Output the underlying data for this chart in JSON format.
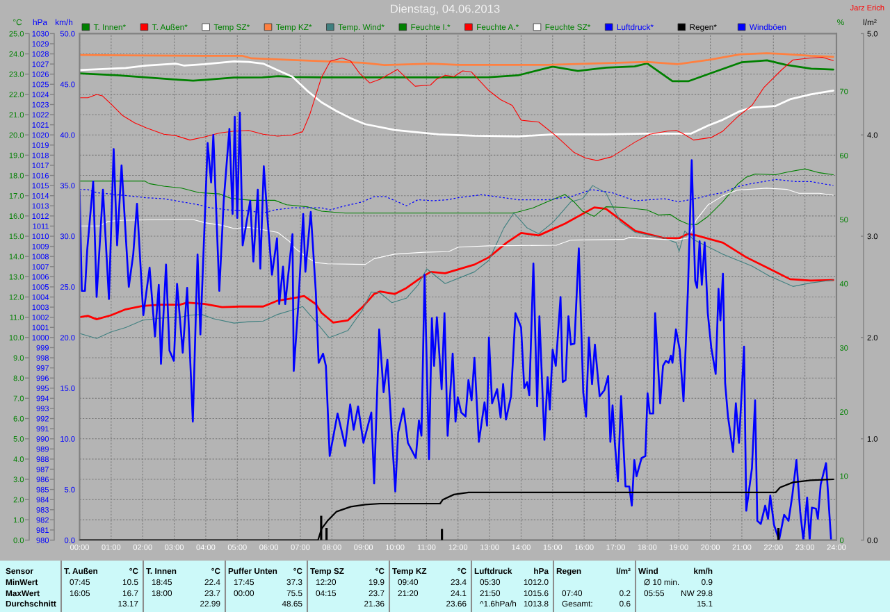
{
  "chart_data": [
    {
      "type": "line",
      "title": "Dienstag, 04.06.2013",
      "annotations": [
        "Jarz Erich"
      ],
      "xlim": [
        0,
        24
      ],
      "xticks": [
        {
          "value": 0,
          "label": "00:00"
        },
        {
          "value": 1,
          "label": "01:00"
        },
        {
          "value": 2,
          "label": "02:00"
        },
        {
          "value": 3,
          "label": "03:00"
        },
        {
          "value": 4,
          "label": "04:00"
        },
        {
          "value": 5,
          "label": "05:00"
        },
        {
          "value": 6,
          "label": "06:00"
        },
        {
          "value": 7,
          "label": "07:00"
        },
        {
          "value": 8,
          "label": "08:00"
        },
        {
          "value": 9,
          "label": "09:00"
        },
        {
          "value": 10,
          "label": "10:00"
        },
        {
          "value": 11,
          "label": "11:00"
        },
        {
          "value": 12,
          "label": "12:00"
        },
        {
          "value": 13,
          "label": "13:00"
        },
        {
          "value": 14,
          "label": "14:00"
        },
        {
          "value": 15,
          "label": "15:00"
        },
        {
          "value": 16,
          "label": "16:00"
        },
        {
          "value": 17,
          "label": "17:00"
        },
        {
          "value": 18,
          "label": "18:00"
        },
        {
          "value": 19,
          "label": "19:00"
        },
        {
          "value": 20,
          "label": "20:00"
        },
        {
          "value": 21,
          "label": "21:00"
        },
        {
          "value": 22,
          "label": "22:00"
        },
        {
          "value": 23,
          "label": "23:00"
        },
        {
          "value": 24,
          "label": "24:00"
        }
      ],
      "ylabel": "°C",
      "ylim": [
        0,
        25
      ],
      "yticks": [
        {
          "value": 0,
          "label": "0.0"
        },
        {
          "value": 1,
          "label": "1.0"
        },
        {
          "value": 2,
          "label": "2.0"
        },
        {
          "value": 3,
          "label": "3.0"
        },
        {
          "value": 4,
          "label": "4.0"
        },
        {
          "value": 5,
          "label": "5.0"
        },
        {
          "value": 6,
          "label": "6.0"
        },
        {
          "value": 7,
          "label": "7.0"
        },
        {
          "value": 8,
          "label": "8.0"
        },
        {
          "value": 9,
          "label": "9.0"
        },
        {
          "value": 10,
          "label": "10.0"
        },
        {
          "value": 11,
          "label": "11.0"
        },
        {
          "value": 12,
          "label": "12.0"
        },
        {
          "value": 13,
          "label": "13.0"
        },
        {
          "value": 14,
          "label": "14.0"
        },
        {
          "value": 15,
          "label": "15.0"
        },
        {
          "value": 16,
          "label": "16.0"
        },
        {
          "value": 17,
          "label": "17.0"
        },
        {
          "value": 18,
          "label": "18.0"
        },
        {
          "value": 19,
          "label": "19.0"
        },
        {
          "value": 20,
          "label": "20.0"
        },
        {
          "value": 21,
          "label": "21.0"
        },
        {
          "value": 22,
          "label": "22.0"
        },
        {
          "value": 23,
          "label": "23.0"
        },
        {
          "value": 24,
          "label": "24.0"
        },
        {
          "value": 25,
          "label": "25.0"
        }
      ],
      "y2label": "%",
      "y2lim": [
        0,
        79
      ],
      "y2ticks": [
        0,
        10,
        20,
        30,
        40,
        50,
        60,
        70
      ],
      "y3label": "hPa",
      "y3lim": [
        980,
        1030
      ],
      "y3ticks": [
        980,
        981,
        982,
        983,
        984,
        985,
        986,
        987,
        988,
        989,
        990,
        991,
        992,
        993,
        994,
        995,
        996,
        997,
        998,
        999,
        1000,
        1001,
        1002,
        1003,
        1004,
        1005,
        1006,
        1007,
        1008,
        1009,
        1010,
        1011,
        1012,
        1013,
        1014,
        1015,
        1016,
        1017,
        1018,
        1019,
        1020,
        1021,
        1022,
        1023,
        1024,
        1025,
        1026,
        1027,
        1028,
        1029,
        1030
      ],
      "grid": true,
      "legend": "top",
      "series": [
        {
          "name": "T. Innen*",
          "color": "#008000",
          "x": [
            0,
            1.2,
            2.1,
            3.0,
            3.6,
            4.0,
            4.9,
            5.8,
            6.3,
            6.8,
            7.7,
            11.1,
            13.0,
            13.9,
            15.0,
            15.8,
            16.7,
            17.6,
            18.0,
            18.8,
            19.3,
            19.9,
            21.0,
            21.8,
            22.4,
            23.2,
            23.9
          ],
          "values": [
            23.04,
            22.94,
            22.84,
            22.74,
            22.68,
            22.72,
            22.83,
            22.84,
            22.9,
            22.86,
            22.84,
            22.84,
            22.85,
            22.94,
            23.37,
            23.16,
            23.32,
            23.38,
            23.53,
            22.65,
            22.65,
            22.98,
            23.59,
            23.68,
            23.46,
            23.27,
            23.23
          ]
        },
        {
          "name": "T. Außen*",
          "color": "#ff0000",
          "x": [
            0,
            0.26,
            0.54,
            1.0,
            1.46,
            2.0,
            2.58,
            3.18,
            3.41,
            3.97,
            4.52,
            5.08,
            5.82,
            6.28,
            6.75,
            7.12,
            7.49,
            7.67,
            8.04,
            8.51,
            8.97,
            9.34,
            9.53,
            9.99,
            10.36,
            10.82,
            11.13,
            11.59,
            12.52,
            12.98,
            13.54,
            14.0,
            14.56,
            15.39,
            16.32,
            16.69,
            17.62,
            18.54,
            19.01,
            19.29,
            19.56,
            20.4,
            21.14,
            21.79,
            22.53,
            23.18,
            23.9
          ],
          "values": [
            11.0,
            11.07,
            10.9,
            11.1,
            11.39,
            11.56,
            11.62,
            11.62,
            11.72,
            11.65,
            11.5,
            11.53,
            11.53,
            11.82,
            11.94,
            12.05,
            11.65,
            11.22,
            10.74,
            10.85,
            11.5,
            12.15,
            12.27,
            12.15,
            12.44,
            12.95,
            13.24,
            13.17,
            13.6,
            13.96,
            14.68,
            15.16,
            15.04,
            15.62,
            16.42,
            16.35,
            15.26,
            14.9,
            14.9,
            15.12,
            15.04,
            14.68,
            13.96,
            13.46,
            12.88,
            12.81,
            12.84
          ]
        },
        {
          "name": "Temp SZ*",
          "color": "#ffffff",
          "x": [
            0,
            1.46,
            2.11,
            3.04,
            3.32,
            3.97,
            4.9,
            5.36,
            5.82,
            6.28,
            6.75,
            7.21,
            7.67,
            8.14,
            8.6,
            9.06,
            9.99,
            10.92,
            11.38,
            12.52,
            13.91,
            15.02,
            16.69,
            17.99,
            19.38,
            19.93,
            20.4,
            20.95,
            21.32,
            22.07,
            22.53,
            23.18,
            23.9
          ],
          "values": [
            23.2,
            23.3,
            23.42,
            23.52,
            23.42,
            23.49,
            23.63,
            23.6,
            23.52,
            23.2,
            22.87,
            22.19,
            21.61,
            21.18,
            20.82,
            20.53,
            20.24,
            20.1,
            20.03,
            19.96,
            19.93,
            20.03,
            20.03,
            20.06,
            20.06,
            20.46,
            20.75,
            21.18,
            21.35,
            21.43,
            21.76,
            22.0,
            22.19
          ]
        },
        {
          "name": "Temp KZ*",
          "color": "#ff8040",
          "x": [
            0,
            2.11,
            3.97,
            5.17,
            5.45,
            6.75,
            8.0,
            8.97,
            9.67,
            11.13,
            12.01,
            14.84,
            17.99,
            18.97,
            19.93,
            20.95,
            21.79,
            22.3,
            23.18,
            23.9
          ],
          "values": [
            23.95,
            23.92,
            23.9,
            23.9,
            23.78,
            23.7,
            23.62,
            23.56,
            23.45,
            23.52,
            23.46,
            23.46,
            23.6,
            23.49,
            23.7,
            23.98,
            24.03,
            24.0,
            23.9,
            23.85
          ]
        },
        {
          "name": "Temp. Wind*",
          "color": "#408080",
          "x": [
            0,
            0.54,
            1.0,
            1.46,
            2.0,
            2.58,
            3.18,
            3.5,
            3.87,
            4.24,
            4.9,
            5.36,
            5.82,
            6.28,
            6.75,
            7.07,
            7.49,
            7.91,
            8.51,
            8.97,
            9.25,
            9.53,
            9.9,
            10.36,
            10.73,
            11.01,
            11.59,
            12.52,
            12.98,
            13.45,
            13.77,
            14.19,
            14.56,
            15.02,
            15.58,
            15.95,
            16.27,
            16.69,
            17.15,
            17.62,
            18.54,
            18.92,
            19.01,
            19.19,
            19.47,
            20.4,
            21.32,
            21.88,
            22.62,
            23.18,
            23.9
          ],
          "values": [
            10.2,
            9.95,
            10.28,
            10.49,
            10.85,
            10.96,
            11.0,
            11.1,
            11.14,
            10.93,
            10.71,
            10.78,
            10.81,
            11.14,
            11.36,
            11.53,
            10.78,
            9.99,
            10.35,
            11.36,
            12.25,
            12.2,
            11.72,
            11.94,
            12.59,
            13.39,
            12.66,
            13.24,
            13.81,
            15.4,
            16.15,
            15.41,
            15.12,
            15.7,
            16.7,
            16.85,
            17.5,
            17.14,
            15.7,
            15.19,
            14.9,
            14.68,
            14.25,
            15.26,
            14.83,
            14.11,
            13.53,
            13.03,
            12.52,
            12.69,
            12.84
          ]
        },
        {
          "name": "Feuchte I.*",
          "color": "#008000",
          "axis": "y2",
          "x": [
            0,
            2.07,
            2.21,
            2.67,
            3.23,
            3.78,
            4.43,
            4.8,
            5.45,
            6.19,
            6.56,
            7.21,
            7.67,
            8.42,
            13.72,
            13.91,
            14.37,
            14.84,
            15.39,
            15.67,
            15.95,
            16.32,
            16.69,
            17.25,
            17.99,
            18.36,
            18.73,
            19.01,
            19.29,
            19.56,
            19.93,
            20.4,
            20.86,
            21.14,
            21.42,
            22.07,
            22.44,
            23.0,
            23.46,
            23.9
          ],
          "values": [
            56.0,
            56.0,
            55.6,
            55.2,
            54.9,
            54.2,
            54.0,
            53.3,
            53.0,
            53.0,
            52.3,
            52.0,
            51.3,
            51.0,
            51.0,
            51.2,
            51.8,
            52.8,
            53.9,
            52.8,
            51.3,
            50.5,
            52.0,
            51.9,
            51.5,
            50.7,
            50.8,
            49.9,
            49.3,
            49.2,
            50.5,
            52.8,
            55.5,
            56.6,
            57.1,
            57.0,
            57.4,
            57.9,
            57.3,
            57.0
          ]
        },
        {
          "name": "Feuchte A.*",
          "color": "#ff0000",
          "axis": "y2",
          "x": [
            0,
            0.26,
            0.54,
            0.72,
            1.0,
            1.37,
            1.74,
            2.11,
            2.67,
            3.04,
            3.5,
            3.97,
            4.43,
            4.9,
            5.36,
            5.82,
            6.28,
            6.75,
            7.07,
            7.3,
            7.67,
            7.95,
            8.32,
            8.6,
            8.88,
            9.2,
            9.53,
            10.08,
            10.64,
            11.13,
            11.32,
            11.59,
            11.87,
            12.15,
            12.43,
            12.98,
            13.35,
            13.72,
            14.0,
            14.56,
            15.12,
            15.67,
            16.04,
            16.41,
            16.88,
            17.62,
            18.08,
            18.64,
            18.92,
            19.1,
            19.47,
            20.03,
            20.4,
            20.86,
            21.32,
            21.7,
            22.25,
            22.62,
            23.18,
            23.55,
            23.9
          ],
          "values": [
            69.0,
            69.0,
            69.5,
            69.3,
            68.0,
            66.2,
            65.1,
            64.3,
            63.3,
            63.1,
            62.4,
            62.9,
            63.5,
            63.8,
            63.9,
            63.3,
            63.0,
            63.2,
            63.7,
            66.4,
            72.2,
            74.7,
            75.2,
            74.7,
            72.8,
            71.3,
            71.9,
            73.4,
            70.8,
            71.0,
            71.9,
            72.5,
            72.3,
            73.2,
            73.0,
            70.1,
            68.7,
            67.8,
            65.5,
            65.2,
            63.0,
            60.5,
            59.6,
            59.2,
            59.8,
            62.1,
            63.3,
            63.8,
            63.9,
            63.5,
            62.4,
            62.8,
            63.8,
            66.0,
            67.8,
            70.6,
            73.3,
            74.9,
            75.2,
            75.3,
            74.8
          ]
        },
        {
          "name": "Feuchte SZ*",
          "color": "#ffffff",
          "axis": "y2",
          "x": [
            0,
            0.63,
            0.9,
            1.37,
            3.04,
            3.6,
            3.97,
            4.52,
            4.9,
            5.36,
            5.82,
            6.28,
            6.65,
            6.84,
            7.21,
            7.49,
            7.86,
            9.06,
            9.34,
            9.99,
            10.92,
            11.7,
            12.01,
            12.98,
            15.12,
            15.58,
            17.25,
            17.43,
            18.92,
            19.29,
            19.56,
            19.93,
            20.4,
            20.86,
            21.79,
            22.44,
            22.81,
            23.46,
            23.9
          ],
          "values": [
            49.0,
            49.0,
            49.7,
            49.9,
            50.0,
            50.0,
            49.5,
            49.1,
            48.6,
            48.8,
            48.4,
            48.0,
            46.6,
            45.5,
            44.1,
            43.3,
            43.1,
            43.0,
            43.9,
            44.6,
            44.9,
            45.0,
            45.7,
            45.9,
            46.0,
            46.8,
            46.9,
            47.2,
            46.8,
            47.1,
            50.0,
            52.3,
            53.7,
            54.6,
            54.9,
            54.7,
            54.1,
            54.1,
            53.8
          ]
        },
        {
          "name": "Luftdruck*",
          "color": "#0000ff",
          "axis": "y3",
          "line_style": "dashed",
          "x": [
            0,
            0.26,
            0.54,
            1.19,
            2.11,
            2.67,
            3.23,
            3.78,
            4.15,
            4.71,
            5.36,
            5.82,
            6.19,
            6.75,
            7.21,
            7.67,
            7.95,
            8.42,
            8.97,
            9.34,
            9.71,
            10.08,
            10.36,
            10.73,
            11.2,
            11.66,
            12.01,
            12.75,
            13.45,
            13.91,
            14.84,
            15.58,
            16.23,
            16.88,
            17.62,
            18.54,
            19.01,
            19.66,
            20.03,
            20.4,
            20.86,
            21.32,
            22.07,
            22.71,
            23.18,
            23.9
          ],
          "values": [
            1014.6,
            1014.6,
            1014.3,
            1014.1,
            1013.8,
            1013.7,
            1013.4,
            1013.1,
            1012.8,
            1012.6,
            1012.5,
            1012.3,
            1012.6,
            1012.8,
            1012.8,
            1012.8,
            1012.6,
            1013.0,
            1013.4,
            1013.9,
            1013.9,
            1013.4,
            1013.0,
            1013.6,
            1013.5,
            1013.6,
            1013.8,
            1014.1,
            1013.8,
            1013.6,
            1013.6,
            1013.9,
            1014.6,
            1014.3,
            1013.5,
            1013.7,
            1013.4,
            1013.8,
            1014.1,
            1014.3,
            1014.9,
            1015.2,
            1015.6,
            1015.4,
            1015.4,
            1015.0
          ]
        }
      ]
    },
    {
      "type": "line",
      "tick_labels": "y",
      "xlim": [
        0,
        24
      ],
      "ylabel": "km/h",
      "ylim": [
        0,
        50
      ],
      "yticks": [
        {
          "value": 0,
          "label": "0.0"
        },
        {
          "value": 5,
          "label": "5.0"
        },
        {
          "value": 10,
          "label": "10.0"
        },
        {
          "value": 15,
          "label": "15.0"
        },
        {
          "value": 20,
          "label": "20.0"
        },
        {
          "value": 25,
          "label": "25.0"
        },
        {
          "value": 30,
          "label": "30.0"
        },
        {
          "value": 35,
          "label": "35.0"
        },
        {
          "value": 40,
          "label": "40.0"
        },
        {
          "value": 45,
          "label": "45.0"
        },
        {
          "value": 50,
          "label": "50.0"
        }
      ],
      "y2label": "l/m²",
      "y2lim": [
        0,
        5
      ],
      "y2ticks": [
        {
          "value": 0,
          "label": "0.0"
        },
        {
          "value": 1,
          "label": "1.0"
        },
        {
          "value": 2,
          "label": "2.0"
        },
        {
          "value": 3,
          "label": "3.0"
        },
        {
          "value": 4,
          "label": "4.0"
        },
        {
          "value": 5,
          "label": "5.0"
        }
      ],
      "legend": "top",
      "series": [
        {
          "name": "Regen*",
          "color": "#000000",
          "axis": "y2",
          "x": [
            0,
            7.56,
            7.67,
            7.86,
            8.14,
            8.6,
            9.06,
            9.53,
            11.43,
            11.52,
            11.87,
            12.33,
            22.07,
            22.21,
            22.62,
            23.18,
            23.9
          ],
          "values": [
            0,
            0,
            0.11,
            0.19,
            0.28,
            0.33,
            0.35,
            0.36,
            0.36,
            0.4,
            0.45,
            0.47,
            0.47,
            0.52,
            0.57,
            0.59,
            0.6
          ]
        },
        {
          "type": "bar",
          "color": "#000000",
          "axis": "y2",
          "x": [
            7.66,
            7.83,
            11.49,
            22.16
          ],
          "values": [
            0.24,
            0.12,
            0.11,
            0.12
          ]
        },
        {
          "name": "Windböen",
          "color": "#0000ff",
          "x": [
            0,
            0.07,
            0.17,
            0.24,
            0.43,
            0.54,
            0.74,
            0.93,
            1.08,
            1.19,
            1.33,
            1.56,
            1.7,
            1.82,
            2.02,
            2.22,
            2.39,
            2.51,
            2.58,
            2.74,
            2.85,
            2.99,
            3.09,
            3.27,
            3.41,
            3.59,
            3.74,
            3.83,
            4.06,
            4.17,
            4.24,
            4.43,
            4.57,
            4.75,
            4.85,
            4.92,
            5.0,
            5.08,
            5.17,
            5.41,
            5.51,
            5.65,
            5.73,
            5.84,
            5.96,
            6.1,
            6.26,
            6.33,
            6.45,
            6.52,
            6.75,
            6.79,
            6.93,
            7.09,
            7.16,
            7.33,
            7.49,
            7.58,
            7.72,
            7.81,
            7.93,
            8.18,
            8.42,
            8.58,
            8.69,
            8.83,
            9.0,
            9.25,
            9.34,
            9.5,
            9.64,
            9.76,
            10.01,
            10.1,
            10.27,
            10.41,
            10.66,
            10.76,
            10.84,
            10.94,
            11.08,
            11.17,
            11.24,
            11.33,
            11.48,
            11.57,
            11.67,
            11.83,
            11.92,
            11.99,
            12.1,
            12.24,
            12.33,
            12.43,
            12.52,
            12.66,
            12.84,
            12.92,
            12.98,
            13.08,
            13.24,
            13.35,
            13.43,
            13.52,
            13.68,
            13.82,
            14.0,
            14.1,
            14.19,
            14.26,
            14.39,
            14.51,
            14.58,
            14.74,
            14.84,
            14.91,
            15.0,
            15.1,
            15.25,
            15.32,
            15.41,
            15.5,
            15.58,
            15.69,
            15.83,
            15.97,
            16.06,
            16.15,
            16.25,
            16.34,
            16.49,
            16.64,
            16.76,
            16.83,
            16.9,
            16.97,
            17.07,
            17.17,
            17.31,
            17.43,
            17.51,
            17.59,
            17.66,
            17.82,
            17.94,
            18.01,
            18.08,
            18.19,
            18.25,
            18.41,
            18.5,
            18.59,
            18.68,
            18.75,
            18.8,
            18.91,
            19.03,
            19.15,
            19.29,
            19.41,
            19.52,
            19.58,
            19.66,
            19.73,
            19.82,
            19.92,
            20.03,
            20.17,
            20.26,
            20.32,
            20.4,
            20.47,
            20.56,
            20.72,
            20.81,
            20.91,
            21.07,
            21.14,
            21.32,
            21.42,
            21.49,
            21.6,
            21.74,
            21.83,
            21.9,
            22.02,
            22.18,
            22.34,
            22.48,
            22.6,
            22.73,
            22.85,
            22.95,
            23.07,
            23.15,
            23.22,
            23.35,
            23.41,
            23.5,
            23.67,
            23.83
          ],
          "values": [
            34.4,
            24.6,
            24.6,
            28.6,
            35.4,
            24.0,
            34.6,
            23.8,
            38.6,
            29.1,
            37.0,
            25.0,
            28.2,
            33.2,
            22.2,
            26.9,
            20.1,
            25.2,
            17.4,
            27.2,
            18.7,
            17.7,
            25.3,
            18.5,
            24.9,
            11.7,
            28.2,
            20.3,
            39.2,
            35.3,
            40.0,
            24.6,
            33.5,
            40.6,
            32.2,
            41.8,
            31.8,
            42.2,
            29.1,
            33.5,
            27.5,
            34.6,
            26.8,
            36.9,
            31.7,
            26.2,
            29.8,
            23.3,
            27.0,
            23.3,
            30.2,
            16.7,
            23.0,
            32.2,
            26.5,
            32.4,
            24.5,
            17.5,
            18.4,
            17.2,
            8.3,
            12.5,
            9.3,
            13.4,
            10.9,
            13.2,
            9.6,
            12.6,
            5.6,
            20.8,
            14.6,
            17.8,
            4.8,
            10.6,
            13.0,
            9.6,
            8.1,
            11.8,
            10.3,
            26.2,
            8.0,
            21.9,
            17.2,
            22.0,
            14.9,
            22.4,
            10.3,
            18.4,
            11.7,
            14.1,
            12.6,
            12.2,
            15.8,
            13.8,
            18.0,
            9.7,
            13.6,
            11.3,
            20.0,
            13.5,
            14.9,
            12.1,
            15.4,
            11.9,
            14.2,
            22.4,
            21.0,
            15.0,
            15.6,
            14.3,
            27.3,
            13.2,
            22.1,
            9.9,
            16.1,
            12.9,
            18.8,
            17.2,
            24.0,
            15.6,
            15.8,
            22.1,
            19.3,
            19.4,
            28.8,
            14.6,
            12.2,
            20.0,
            15.4,
            19.3,
            14.2,
            14.8,
            16.2,
            9.7,
            13.3,
            9.7,
            5.8,
            14.2,
            5.3,
            5.3,
            3.4,
            7.9,
            6.3,
            8.1,
            8.3,
            14.5,
            12.5,
            12.5,
            22.4,
            13.5,
            17.2,
            17.7,
            17.5,
            18.2,
            17.5,
            20.8,
            18.8,
            13.7,
            24.7,
            37.5,
            25.6,
            24.9,
            29.5,
            25.2,
            29.4,
            22.4,
            19.0,
            16.4,
            24.8,
            21.7,
            26.3,
            15.5,
            12.2,
            8.7,
            13.5,
            9.6,
            19.1,
            2.9,
            7.1,
            13.8,
            1.9,
            1.6,
            3.4,
            2.1,
            4.4,
            1.5,
            0,
            2.5,
            1.9,
            4.4,
            7.9,
            2.8,
            0,
            4.2,
            0,
            3.2,
            3.1,
            2.1,
            5.5,
            7.6,
            0
          ]
        }
      ]
    },
    {
      "type": "other",
      "annotations": [
        "Sensor",
        "T. Außen",
        "°C",
        "T. Innen",
        "°C",
        "Puffer Unten",
        "°C",
        "Temp SZ",
        "°C",
        "Temp KZ",
        "°C",
        "Luftdruck",
        "hPa",
        "Regen",
        "l/m²",
        "Wind",
        "km/h",
        "MinWert",
        "07:45",
        "10.5",
        "18:45",
        "22.4",
        "17:45",
        "37.3",
        "12:20",
        "19.9",
        "09:40",
        "23.4",
        "05:30",
        "1012.0",
        "Ø 10 min.",
        "0.9",
        "MaxWert",
        "16:05",
        "16.7",
        "18:00",
        "23.7",
        "00:00",
        "75.5",
        "04:15",
        "23.7",
        "21:20",
        "24.1",
        "21:50",
        "1015.6",
        "07:40",
        "0.2",
        "05:55",
        "NW 29.8",
        "Durchschnitt",
        "13.17",
        "22.99",
        "48.65",
        "21.36",
        "23.66",
        "^1.6hPa/h",
        "1013.8",
        "Gesamt:",
        "0.6",
        "15.1"
      ]
    }
  ]
}
